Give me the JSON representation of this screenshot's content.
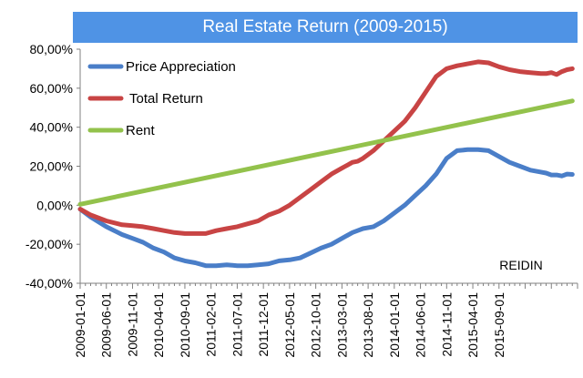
{
  "chart_data": {
    "type": "line",
    "title": "Real Estate Return (2009-2015)",
    "source_label": "REIDIN",
    "ylim": [
      -40,
      80
    ],
    "y_ticks": [
      "80,00%",
      "60,00%",
      "40,00%",
      "20,00%",
      "0,00%",
      "-20,00%",
      "-40,00%"
    ],
    "x_labels": [
      "2009-01-01",
      "2009-06-01",
      "2009-11-01",
      "2010-04-01",
      "2010-09-01",
      "2011-02-01",
      "2011-07-01",
      "2011-12-01",
      "2012-05-01",
      "2012-10-01",
      "2013-03-01",
      "2013-08-01",
      "2014-01-01",
      "2014-06-01",
      "2014-11-01",
      "2015-04-01",
      "2015-09-01"
    ],
    "x_month_range": [
      0,
      83
    ],
    "grid": false,
    "legend_position": "top-left",
    "series": [
      {
        "name": "Price Appreciation",
        "color": "#4a7ec8",
        "points": [
          [
            0,
            -2
          ],
          [
            2,
            -6
          ],
          [
            5,
            -11
          ],
          [
            8,
            -15
          ],
          [
            10,
            -17
          ],
          [
            12,
            -19
          ],
          [
            14,
            -22
          ],
          [
            16,
            -24
          ],
          [
            18,
            -27
          ],
          [
            20,
            -28.5
          ],
          [
            22,
            -29.5
          ],
          [
            24,
            -31
          ],
          [
            26,
            -31
          ],
          [
            28,
            -30.5
          ],
          [
            30,
            -31
          ],
          [
            32,
            -31
          ],
          [
            34,
            -30.5
          ],
          [
            36,
            -30
          ],
          [
            38,
            -28.5
          ],
          [
            40,
            -28
          ],
          [
            42,
            -27
          ],
          [
            44,
            -24.5
          ],
          [
            46,
            -22
          ],
          [
            48,
            -20
          ],
          [
            50,
            -17
          ],
          [
            52,
            -14
          ],
          [
            53,
            -13
          ],
          [
            54,
            -12
          ],
          [
            56,
            -11
          ],
          [
            58,
            -8
          ],
          [
            60,
            -4
          ],
          [
            62,
            0
          ],
          [
            64,
            5
          ],
          [
            66,
            10
          ],
          [
            68,
            16
          ],
          [
            70,
            24
          ],
          [
            72,
            28
          ],
          [
            74,
            28.5
          ],
          [
            76,
            28.5
          ],
          [
            78,
            28
          ],
          [
            80,
            25
          ],
          [
            82,
            22
          ],
          [
            84,
            20
          ],
          [
            86,
            18
          ],
          [
            88,
            17
          ],
          [
            89,
            16.5
          ],
          [
            90,
            15.5
          ],
          [
            91,
            15.5
          ],
          [
            92,
            15
          ],
          [
            93,
            16
          ],
          [
            94,
            15.8
          ]
        ]
      },
      {
        "name": "Total Return",
        "color": "#c84444",
        "points": [
          [
            0,
            -2
          ],
          [
            2,
            -5
          ],
          [
            5,
            -8
          ],
          [
            8,
            -10
          ],
          [
            10,
            -10.5
          ],
          [
            12,
            -11
          ],
          [
            14,
            -12
          ],
          [
            16,
            -13
          ],
          [
            18,
            -14
          ],
          [
            20,
            -14.5
          ],
          [
            22,
            -14.5
          ],
          [
            24,
            -14.5
          ],
          [
            26,
            -13
          ],
          [
            28,
            -12
          ],
          [
            30,
            -11
          ],
          [
            32,
            -9.5
          ],
          [
            34,
            -8
          ],
          [
            36,
            -5
          ],
          [
            38,
            -3
          ],
          [
            40,
            0
          ],
          [
            42,
            4
          ],
          [
            44,
            8
          ],
          [
            46,
            12
          ],
          [
            48,
            16
          ],
          [
            50,
            19
          ],
          [
            52,
            22
          ],
          [
            53,
            22.5
          ],
          [
            54,
            24
          ],
          [
            56,
            28
          ],
          [
            58,
            33
          ],
          [
            60,
            38
          ],
          [
            62,
            43
          ],
          [
            64,
            50
          ],
          [
            66,
            58
          ],
          [
            68,
            66
          ],
          [
            70,
            70
          ],
          [
            72,
            71.5
          ],
          [
            74,
            72.5
          ],
          [
            76,
            73.5
          ],
          [
            78,
            73
          ],
          [
            80,
            71
          ],
          [
            82,
            69.5
          ],
          [
            84,
            68.5
          ],
          [
            86,
            68
          ],
          [
            88,
            67.5
          ],
          [
            89,
            67.5
          ],
          [
            90,
            68
          ],
          [
            91,
            67
          ],
          [
            92,
            68.5
          ],
          [
            93,
            69.5
          ],
          [
            94,
            70
          ]
        ]
      },
      {
        "name": "Rent",
        "color": "#93c24c",
        "points": [
          [
            0,
            0.5
          ],
          [
            94,
            53.5
          ]
        ]
      }
    ]
  }
}
